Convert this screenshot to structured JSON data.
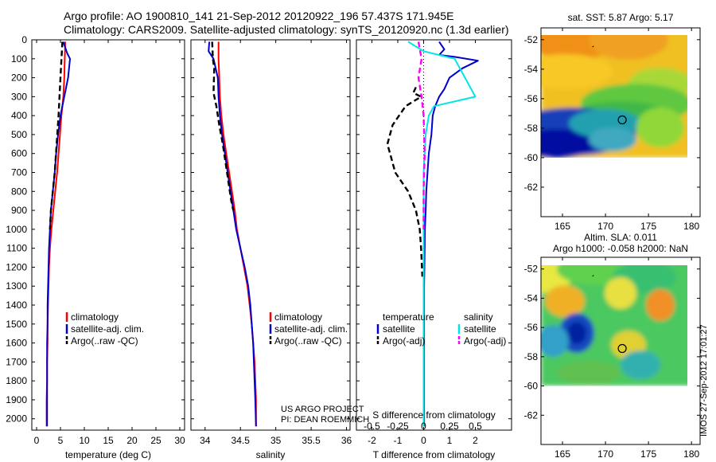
{
  "header": {
    "line1": "Argo profile: AO 1900810_141 21-Sep-2012 20120922_196 57.437S 171.945E",
    "line2": "Climatology: CARS2009. Satellite-adjusted climatology: synTS_20120920.nc (1.3d earlier)"
  },
  "credit": {
    "project": "US ARGO PROJECT",
    "pi": "PI: DEAN ROEMMICH",
    "stamp": "IMOS 27-Sep-2012 17:01:27"
  },
  "colors": {
    "climatology": "#ff0000",
    "satellite": "#0000cc",
    "argo": "#000000",
    "sat_salinity": "#00e5e5",
    "argo_salinity": "#ff00ff",
    "marker": "#000000"
  },
  "depth_ticks": [
    0,
    100,
    200,
    300,
    400,
    500,
    600,
    700,
    800,
    900,
    1000,
    1100,
    1200,
    1300,
    1400,
    1500,
    1600,
    1700,
    1800,
    1900,
    2000
  ],
  "chart_data": [
    {
      "type": "line",
      "xlabel": "temperature (deg C)",
      "xlim": [
        -1,
        31
      ],
      "ylim": [
        2060,
        0
      ],
      "xticks": [
        0,
        5,
        10,
        15,
        20,
        25,
        30
      ],
      "xtick_labels": [
        "0",
        "5",
        "10",
        "15",
        "20",
        "25",
        "30"
      ],
      "legend": [
        "climatology",
        "satellite-adj. clim.",
        "Argo(..raw -QC)"
      ],
      "series": [
        {
          "name": "climatology",
          "color": "#ff0000",
          "dash": false,
          "x": [
            6.0,
            5.9,
            5.8,
            5.6,
            5.2,
            4.9,
            4.6,
            4.3,
            3.9,
            3.5,
            3.1,
            2.8,
            2.6,
            2.5,
            2.4,
            2.3,
            2.3,
            2.2,
            2.2,
            2.1,
            2.1
          ],
          "y": [
            10,
            100,
            200,
            300,
            400,
            500,
            600,
            700,
            800,
            900,
            1000,
            1100,
            1200,
            1300,
            1400,
            1500,
            1600,
            1700,
            1800,
            1900,
            2040
          ]
        },
        {
          "name": "satellite-adj. clim.",
          "color": "#0000cc",
          "dash": false,
          "x": [
            5.6,
            6.4,
            7.0,
            6.6,
            5.8,
            5.0,
            4.5,
            4.1,
            3.8,
            3.4,
            3.0,
            2.8,
            2.6,
            2.5,
            2.4,
            2.3,
            2.3,
            2.2,
            2.2,
            2.2,
            2.2
          ],
          "y": [
            10,
            70,
            100,
            200,
            300,
            400,
            500,
            600,
            700,
            800,
            900,
            1000,
            1100,
            1200,
            1300,
            1400,
            1500,
            1600,
            1700,
            1800,
            2040
          ]
        },
        {
          "name": "Argo(..raw -QC)",
          "color": "#000000",
          "dash": true,
          "x": [
            5.4,
            5.0,
            4.6,
            4.2,
            3.8,
            3.4,
            3.0,
            2.8
          ],
          "y": [
            10,
            200,
            400,
            550,
            700,
            800,
            900,
            1000
          ]
        }
      ]
    },
    {
      "type": "line",
      "xlabel": "salinity",
      "xlim": [
        33.8,
        36.05
      ],
      "ylim": [
        2060,
        0
      ],
      "xticks": [
        34,
        34.5,
        35,
        35.5,
        36
      ],
      "xtick_labels": [
        "34",
        "34.5",
        "35",
        "35.5",
        "36"
      ],
      "legend": [
        "climatology",
        "satellite-adj. clim.",
        "Argo(..raw -QC)"
      ],
      "series": [
        {
          "name": "climatology",
          "color": "#ff0000",
          "dash": false,
          "x": [
            34.19,
            34.19,
            34.2,
            34.21,
            34.23,
            34.26,
            34.3,
            34.34,
            34.38,
            34.42,
            34.45,
            34.5,
            34.55,
            34.6,
            34.63,
            34.66,
            34.68,
            34.7,
            34.71,
            34.72,
            34.72
          ],
          "y": [
            10,
            100,
            200,
            300,
            400,
            500,
            600,
            700,
            800,
            900,
            1000,
            1100,
            1200,
            1300,
            1400,
            1500,
            1600,
            1700,
            1800,
            1900,
            2040
          ]
        },
        {
          "name": "satellite-adj. clim.",
          "color": "#0000cc",
          "dash": false,
          "x": [
            34.06,
            34.05,
            34.12,
            34.18,
            34.19,
            34.21,
            34.24,
            34.28,
            34.32,
            34.36,
            34.4,
            34.44,
            34.5,
            34.56,
            34.61,
            34.64,
            34.66,
            34.68,
            34.69,
            34.7,
            34.71,
            34.72
          ],
          "y": [
            10,
            60,
            100,
            200,
            300,
            400,
            500,
            600,
            700,
            800,
            900,
            1000,
            1100,
            1200,
            1300,
            1400,
            1500,
            1600,
            1700,
            1800,
            1900,
            2040
          ]
        },
        {
          "name": "Argo(..raw -QC)",
          "color": "#000000",
          "dash": true,
          "x": [
            34.1,
            34.11,
            34.13,
            34.12,
            34.16,
            34.2,
            34.25,
            34.29,
            34.33,
            34.37,
            34.4
          ],
          "y": [
            10,
            100,
            150,
            280,
            350,
            450,
            550,
            650,
            750,
            850,
            900
          ]
        }
      ]
    },
    {
      "type": "line",
      "xlabel": "T difference from climatology",
      "xlabel2": "S difference from climatology",
      "xlim": [
        -2.6,
        3.4
      ],
      "ylim": [
        2060,
        0
      ],
      "xticks": [
        -2,
        -1,
        0,
        1,
        2
      ],
      "xtick_labels": [
        "-2",
        "-1",
        "0",
        "1",
        "2"
      ],
      "s_xticks": [
        -0.5,
        -0.25,
        0,
        0.25,
        0.5
      ],
      "s_xtick_labels": [
        "-0.5",
        "-0.25",
        "0",
        "0.25",
        "0.5"
      ],
      "legend_titles": [
        "temperature",
        "salinity"
      ],
      "legend": [
        "satellite",
        "Argo(-adj)",
        "satellite",
        "Argo(-adj)"
      ],
      "series": [
        {
          "name": "temperature satellite",
          "color": "#0000cc",
          "dash": false,
          "x": [
            0.6,
            0.8,
            0.6,
            1.2,
            2.1,
            1.5,
            1.0,
            0.8,
            0.6,
            0.45,
            0.35,
            0.3,
            0.2,
            0.15,
            0.1,
            0.08,
            0.05,
            0.04,
            0.03,
            0.02,
            0.02,
            0.02,
            0.02
          ],
          "y": [
            10,
            50,
            80,
            90,
            110,
            150,
            200,
            260,
            300,
            350,
            400,
            500,
            600,
            700,
            800,
            900,
            1000,
            1100,
            1200,
            1300,
            1500,
            1800,
            2040
          ]
        },
        {
          "name": "temperature Argo(-adj)",
          "color": "#000000",
          "dash": true,
          "x": [
            -0.3,
            -0.4,
            -0.1,
            -0.7,
            -1.2,
            -1.4,
            -1.1,
            -0.6,
            -0.3,
            -0.15,
            -0.1,
            -0.05
          ],
          "y": [
            250,
            280,
            300,
            350,
            450,
            550,
            700,
            800,
            900,
            1000,
            1100,
            1250
          ]
        },
        {
          "name": "salinity satellite",
          "color": "#00e5e5",
          "dash": false,
          "x": [
            -0.15,
            0.0,
            0.3,
            0.5,
            0.1,
            0.05,
            0.02,
            0.0,
            0.0,
            0.0,
            0.0
          ],
          "y": [
            10,
            60,
            100,
            300,
            350,
            400,
            500,
            700,
            1000,
            1500,
            2040
          ]
        },
        {
          "name": "salinity Argo(-adj)",
          "color": "#ff00ff",
          "dash": true,
          "x": [
            -0.05,
            -0.02,
            -0.05,
            -0.02,
            0.0,
            0.01,
            0.0,
            0.0
          ],
          "y": [
            10,
            100,
            200,
            300,
            400,
            600,
            800,
            1000
          ]
        }
      ]
    },
    {
      "type": "heatmap",
      "title": "sat. SST: 5.87 Argo: 5.17",
      "xlim": [
        162.5,
        181
      ],
      "ylim": [
        -64,
        -51.2
      ],
      "xticks": [
        165,
        170,
        175,
        180
      ],
      "yticks": [
        -62,
        -60,
        -58,
        -56,
        -54,
        -52
      ],
      "field_lon": [
        162.5,
        180
      ],
      "field_lat": [
        -60,
        -51.2
      ],
      "argo_position": [
        171.945,
        -57.437
      ]
    },
    {
      "type": "heatmap",
      "title": "Altim. SLA: 0.011",
      "subtitle": "Argo h1000: -0.058 h2000: NaN",
      "xlim": [
        162.5,
        181
      ],
      "ylim": [
        -64,
        -51.2
      ],
      "xticks": [
        165,
        170,
        175,
        180
      ],
      "yticks": [
        -62,
        -60,
        -58,
        -56,
        -54,
        -52
      ],
      "field_lon": [
        162.5,
        180
      ],
      "field_lat": [
        -60,
        -51.2
      ],
      "argo_position": [
        171.945,
        -57.437
      ]
    }
  ]
}
